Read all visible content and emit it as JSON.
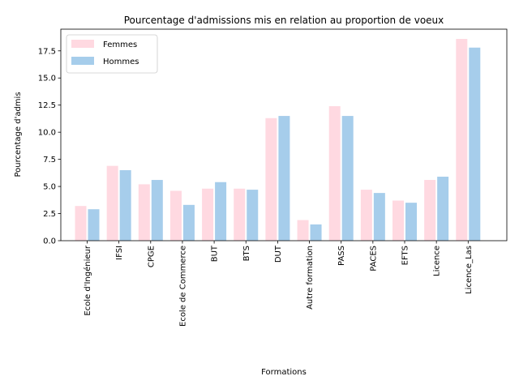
{
  "chart_data": {
    "type": "bar",
    "title": "Pourcentage d'admissions mis en relation au proportion de voeux",
    "xlabel": "Formations",
    "ylabel": "Pourcentage d'admis",
    "categories": [
      "Ecole d'Ingénieur",
      "IFSI",
      "CPGE",
      "Ecole de Commerce",
      "BUT",
      "BTS",
      "DUT",
      "Autre formation",
      "PASS",
      "PACES",
      "EFTS",
      "Licence",
      "Licence_Las"
    ],
    "series": [
      {
        "name": "Femmes",
        "color": "#ffd9e1",
        "values": [
          3.2,
          6.9,
          5.2,
          4.6,
          4.8,
          4.8,
          11.3,
          1.9,
          12.4,
          4.7,
          3.7,
          5.6,
          18.6
        ]
      },
      {
        "name": "Hommes",
        "color": "#a6cdeb",
        "values": [
          2.9,
          6.5,
          5.6,
          3.3,
          5.4,
          4.7,
          11.5,
          1.5,
          11.5,
          4.4,
          3.5,
          5.9,
          17.8
        ]
      }
    ],
    "ylim": [
      0,
      19.5
    ],
    "yticks": [
      "0.0",
      "2.5",
      "5.0",
      "7.5",
      "10.0",
      "12.5",
      "15.0",
      "17.5"
    ],
    "legend_position": "upper left",
    "grid": false
  }
}
